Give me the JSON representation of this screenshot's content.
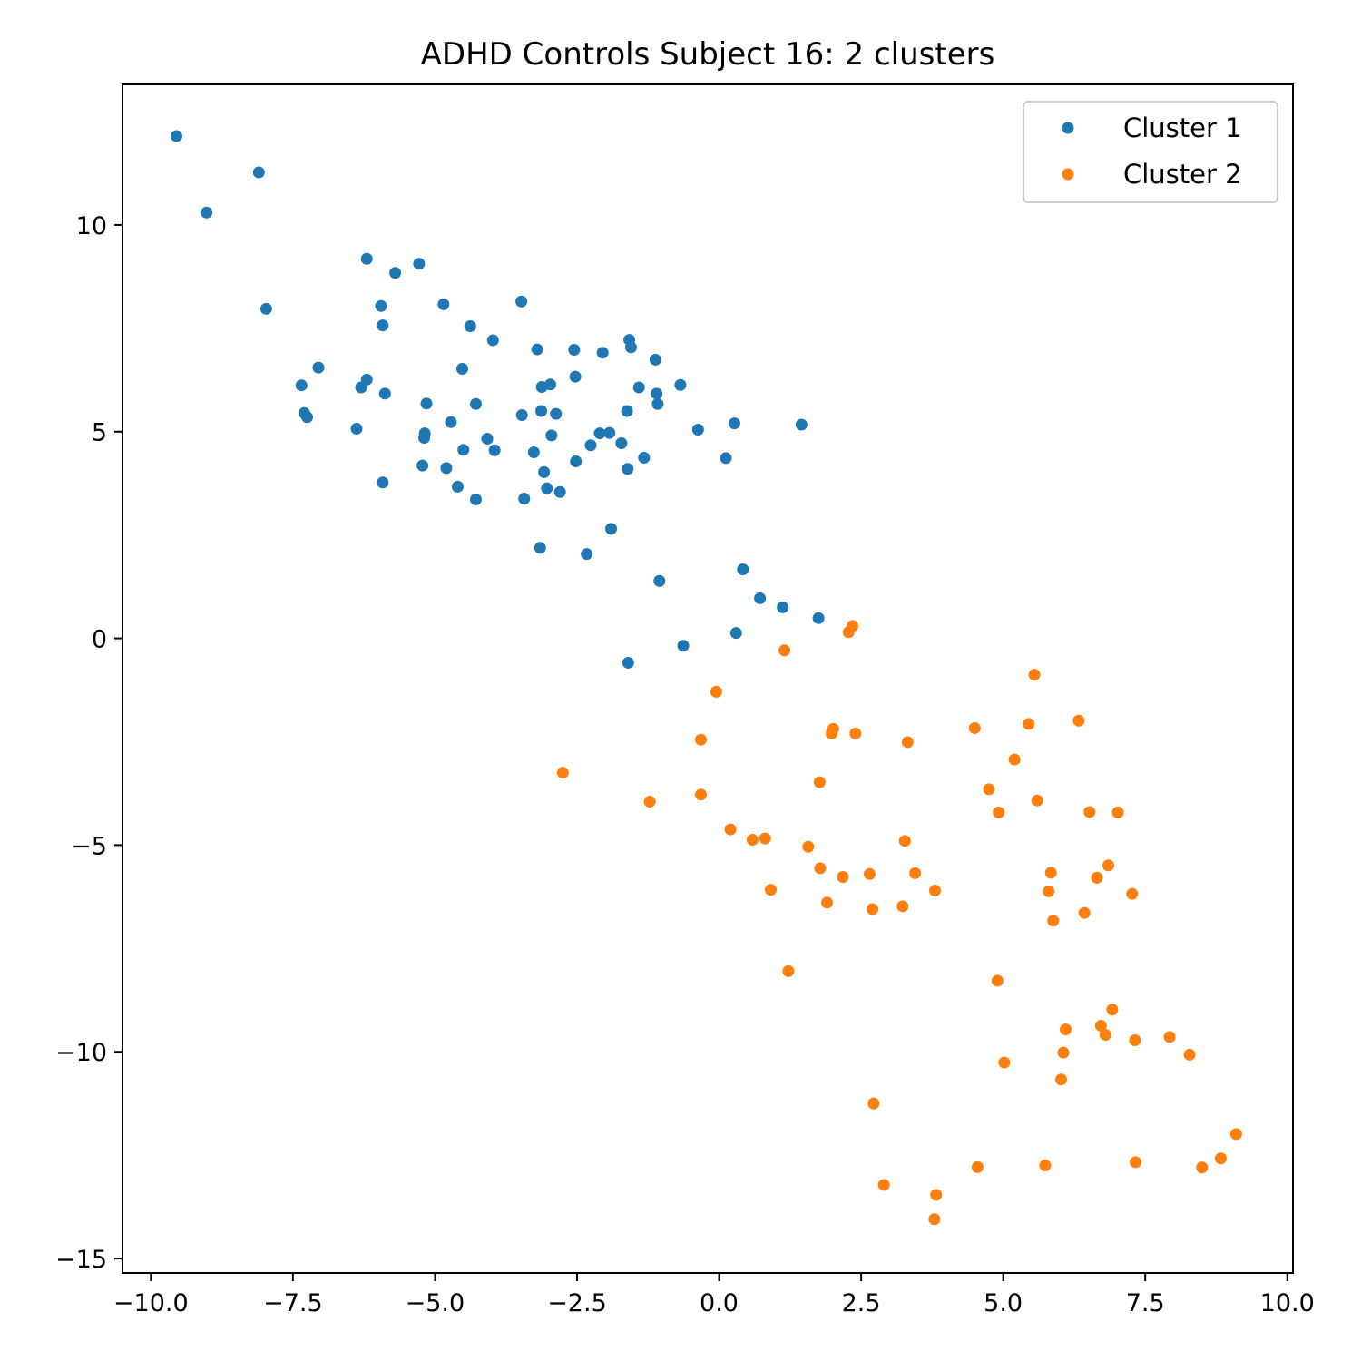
{
  "chart_data": {
    "type": "scatter",
    "title": "ADHD Controls Subject 16: 2 clusters",
    "xlabel": "",
    "ylabel": "",
    "xlim": [
      -10.5,
      10.1
    ],
    "ylim": [
      -15.35,
      13.4
    ],
    "x_ticks": [
      -10.0,
      -7.5,
      -5.0,
      -2.5,
      0.0,
      2.5,
      5.0,
      7.5,
      10.0
    ],
    "x_tick_labels": [
      "−10.0",
      "−7.5",
      "−5.0",
      "−2.5",
      "0.0",
      "2.5",
      "5.0",
      "7.5",
      "10.0"
    ],
    "y_ticks": [
      10,
      5,
      0,
      -5,
      -10,
      -15
    ],
    "y_tick_labels": [
      "10",
      "5",
      "0",
      "−5",
      "−10",
      "−15"
    ],
    "grid": false,
    "legend_position": "top-right",
    "series": [
      {
        "name": "Cluster 1",
        "color": "#1f77b4",
        "points": [
          [
            -9.55,
            12.15
          ],
          [
            -8.1,
            11.27
          ],
          [
            -9.02,
            10.3
          ],
          [
            -7.97,
            7.97
          ],
          [
            -6.2,
            9.18
          ],
          [
            -5.7,
            8.84
          ],
          [
            -5.28,
            9.06
          ],
          [
            -5.95,
            8.04
          ],
          [
            -5.92,
            7.57
          ],
          [
            -4.85,
            8.08
          ],
          [
            -4.38,
            7.55
          ],
          [
            -3.98,
            7.21
          ],
          [
            -3.48,
            8.15
          ],
          [
            -7.05,
            6.55
          ],
          [
            -7.35,
            6.12
          ],
          [
            -7.3,
            5.45
          ],
          [
            -7.25,
            5.35
          ],
          [
            -6.3,
            6.07
          ],
          [
            -6.2,
            6.26
          ],
          [
            -5.88,
            5.92
          ],
          [
            -6.38,
            5.07
          ],
          [
            -5.15,
            5.68
          ],
          [
            -5.18,
            4.96
          ],
          [
            -5.19,
            4.85
          ],
          [
            -4.72,
            5.23
          ],
          [
            -4.52,
            6.52
          ],
          [
            -4.28,
            5.67
          ],
          [
            -4.08,
            4.83
          ],
          [
            -3.95,
            4.55
          ],
          [
            -3.47,
            5.4
          ],
          [
            -3.2,
            6.99
          ],
          [
            -3.12,
            6.08
          ],
          [
            -2.97,
            6.14
          ],
          [
            -3.13,
            5.5
          ],
          [
            -2.87,
            5.43
          ],
          [
            -2.55,
            6.98
          ],
          [
            -2.53,
            6.33
          ],
          [
            -2.95,
            4.91
          ],
          [
            -3.26,
            4.5
          ],
          [
            -3.08,
            4.02
          ],
          [
            -3.03,
            3.63
          ],
          [
            -2.8,
            3.54
          ],
          [
            -2.52,
            4.28
          ],
          [
            -2.26,
            4.67
          ],
          [
            -2.1,
            4.96
          ],
          [
            -2.05,
            6.91
          ],
          [
            -1.93,
            4.97
          ],
          [
            -1.9,
            2.65
          ],
          [
            -1.72,
            4.72
          ],
          [
            -1.62,
            5.5
          ],
          [
            -1.61,
            4.1
          ],
          [
            -1.58,
            7.22
          ],
          [
            -1.55,
            7.04
          ],
          [
            -1.41,
            6.07
          ],
          [
            -1.32,
            4.37
          ],
          [
            -1.12,
            6.74
          ],
          [
            -1.1,
            5.92
          ],
          [
            -1.08,
            5.67
          ],
          [
            -0.68,
            6.13
          ],
          [
            -0.37,
            5.05
          ],
          [
            -4.8,
            4.12
          ],
          [
            -4.6,
            3.67
          ],
          [
            -4.28,
            3.36
          ],
          [
            -5.22,
            4.18
          ],
          [
            -4.5,
            4.56
          ],
          [
            -5.92,
            3.77
          ],
          [
            -3.43,
            3.38
          ],
          [
            -3.15,
            2.19
          ],
          [
            -2.33,
            2.04
          ],
          [
            -1.05,
            1.39
          ],
          [
            0.12,
            4.36
          ],
          [
            0.27,
            5.2
          ],
          [
            1.45,
            5.17
          ],
          [
            0.42,
            1.67
          ],
          [
            0.72,
            0.97
          ],
          [
            1.12,
            0.75
          ],
          [
            1.75,
            0.49
          ],
          [
            0.3,
            0.13
          ],
          [
            -0.63,
            -0.18
          ],
          [
            -1.6,
            -0.59
          ]
        ]
      },
      {
        "name": "Cluster 2",
        "color": "#ff7f0e",
        "points": [
          [
            2.35,
            0.3
          ],
          [
            2.28,
            0.15
          ],
          [
            1.15,
            -0.29
          ],
          [
            -0.05,
            -1.29
          ],
          [
            5.55,
            -0.88
          ],
          [
            -0.32,
            -2.45
          ],
          [
            1.98,
            -2.3
          ],
          [
            2.01,
            -2.19
          ],
          [
            2.4,
            -2.3
          ],
          [
            3.32,
            -2.51
          ],
          [
            4.5,
            -2.17
          ],
          [
            5.45,
            -2.07
          ],
          [
            6.33,
            -1.99
          ],
          [
            5.2,
            -2.93
          ],
          [
            -2.75,
            -3.25
          ],
          [
            1.77,
            -3.48
          ],
          [
            4.75,
            -3.65
          ],
          [
            5.6,
            -3.92
          ],
          [
            4.92,
            -4.21
          ],
          [
            6.52,
            -4.2
          ],
          [
            7.02,
            -4.21
          ],
          [
            -1.22,
            -3.95
          ],
          [
            -0.32,
            -3.78
          ],
          [
            0.2,
            -4.62
          ],
          [
            0.59,
            -4.87
          ],
          [
            0.81,
            -4.84
          ],
          [
            1.57,
            -5.04
          ],
          [
            3.27,
            -4.9
          ],
          [
            1.78,
            -5.56
          ],
          [
            2.18,
            -5.77
          ],
          [
            2.65,
            -5.7
          ],
          [
            3.45,
            -5.68
          ],
          [
            0.91,
            -6.08
          ],
          [
            1.9,
            -6.39
          ],
          [
            2.7,
            -6.55
          ],
          [
            3.23,
            -6.48
          ],
          [
            3.8,
            -6.1
          ],
          [
            5.8,
            -6.12
          ],
          [
            5.84,
            -5.67
          ],
          [
            6.85,
            -5.49
          ],
          [
            6.65,
            -5.79
          ],
          [
            7.27,
            -6.18
          ],
          [
            5.88,
            -6.83
          ],
          [
            6.43,
            -6.64
          ],
          [
            1.22,
            -8.05
          ],
          [
            4.9,
            -8.28
          ],
          [
            6.92,
            -8.98
          ],
          [
            6.72,
            -9.37
          ],
          [
            6.8,
            -9.59
          ],
          [
            6.1,
            -9.46
          ],
          [
            7.32,
            -9.72
          ],
          [
            7.93,
            -9.64
          ],
          [
            8.28,
            -10.07
          ],
          [
            6.06,
            -10.02
          ],
          [
            5.02,
            -10.26
          ],
          [
            6.02,
            -10.67
          ],
          [
            2.72,
            -11.25
          ],
          [
            9.1,
            -11.99
          ],
          [
            8.83,
            -12.58
          ],
          [
            8.5,
            -12.8
          ],
          [
            7.33,
            -12.67
          ],
          [
            5.74,
            -12.75
          ],
          [
            4.55,
            -12.79
          ],
          [
            2.9,
            -13.22
          ],
          [
            3.82,
            -13.46
          ],
          [
            3.79,
            -14.05
          ]
        ]
      }
    ]
  }
}
